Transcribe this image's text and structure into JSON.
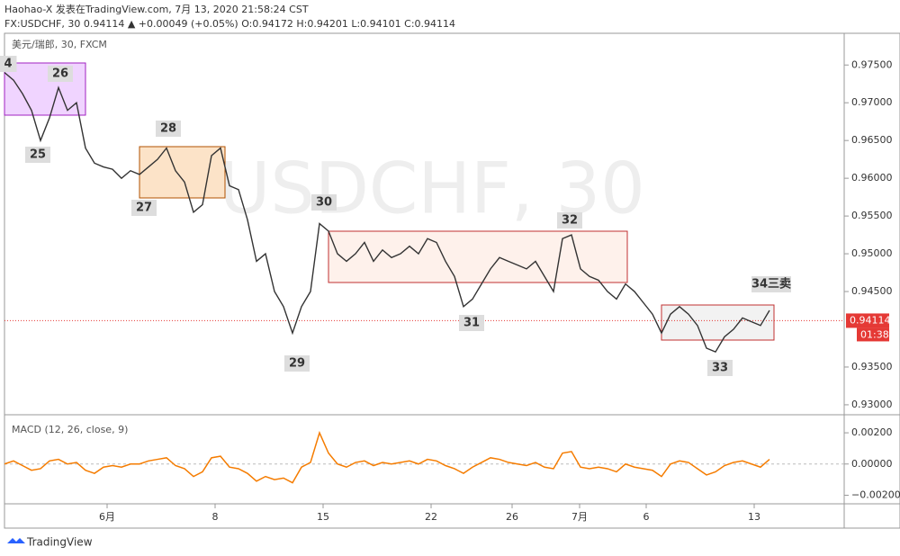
{
  "header": {
    "line1": "Haohao-X 发表在TradingView.com, 7月 13, 2020 21:58:24 CST",
    "line2": "FX:USDCHF, 30 0.94114 ▲ +0.00049 (+0.05%) O:0.94172 H:0.94201 L:0.94101 C:0.94114",
    "pane_title": "美元/瑞郎, 30, FXCM",
    "watermark": "USDCHF, 30",
    "countdown": "01:38",
    "logo": "TradingView"
  },
  "chart_data": [
    {
      "type": "line",
      "series": [
        {
          "name": "USDCHF",
          "color": "#333333",
          "values": [
            0.974,
            0.973,
            0.9712,
            0.969,
            0.965,
            0.968,
            0.972,
            0.969,
            0.97,
            0.964,
            0.962,
            0.9615,
            0.9612,
            0.96,
            0.961,
            0.9605,
            0.9615,
            0.9625,
            0.964,
            0.961,
            0.9595,
            0.9555,
            0.9565,
            0.963,
            0.964,
            0.959,
            0.9585,
            0.9545,
            0.949,
            0.95,
            0.945,
            0.943,
            0.9395,
            0.943,
            0.945,
            0.954,
            0.953,
            0.95,
            0.949,
            0.95,
            0.9515,
            0.949,
            0.9505,
            0.9495,
            0.95,
            0.951,
            0.95,
            0.952,
            0.9515,
            0.949,
            0.947,
            0.943,
            0.944,
            0.946,
            0.948,
            0.9495,
            0.949,
            0.9485,
            0.948,
            0.949,
            0.947,
            0.945,
            0.952,
            0.9525,
            0.948,
            0.947,
            0.9465,
            0.945,
            0.944,
            0.946,
            0.945,
            0.9435,
            0.942,
            0.9395,
            0.942,
            0.943,
            0.942,
            0.9405,
            0.9375,
            0.937,
            0.939,
            0.94,
            0.9415,
            0.941,
            0.9405,
            0.9425
          ]
        }
      ],
      "xlim": [
        0,
        93.3
      ],
      "xticks": [
        {
          "value": 11.4,
          "label": "6月"
        },
        {
          "value": 23.4,
          "label": "8"
        },
        {
          "value": 35.4,
          "label": "15"
        },
        {
          "value": 47.4,
          "label": "22"
        },
        {
          "value": 56.4,
          "label": "26"
        },
        {
          "value": 63.9,
          "label": "7月"
        },
        {
          "value": 71.3,
          "label": "6"
        },
        {
          "value": 83.3,
          "label": "13"
        }
      ],
      "ylim": [
        0.9288,
        0.9792
      ],
      "yticks": [
        {
          "value": 0.975,
          "label": "0.97500"
        },
        {
          "value": 0.97,
          "label": "0.97000"
        },
        {
          "value": 0.965,
          "label": "0.96500"
        },
        {
          "value": 0.96,
          "label": "0.96000"
        },
        {
          "value": 0.955,
          "label": "0.95500"
        },
        {
          "value": 0.95,
          "label": "0.95000"
        },
        {
          "value": 0.945,
          "label": "0.94500"
        },
        {
          "value": 0.935,
          "label": "0.93500"
        },
        {
          "value": 0.93,
          "label": "0.93000"
        }
      ],
      "last_price": {
        "value": 0.94114,
        "label": "0.94114"
      },
      "annotations": [
        "4",
        "25",
        "26",
        "28",
        "27",
        "30",
        "29",
        "31",
        "32",
        "33",
        "34三卖"
      ]
    },
    {
      "type": "line",
      "title": "MACD (12, 26, close, 9)",
      "series": [
        {
          "name": "MACD",
          "color": "#f57c00",
          "values": [
            0.0,
            0.0002,
            -0.0001,
            -0.0004,
            -0.0003,
            0.0002,
            0.0003,
            0.0,
            0.0001,
            -0.0004,
            -0.0006,
            -0.0002,
            -0.0001,
            -0.0002,
            0.0,
            0.0,
            0.0002,
            0.0003,
            0.0004,
            -0.0001,
            -0.0003,
            -0.0008,
            -0.0005,
            0.0004,
            0.0005,
            -0.0002,
            -0.0003,
            -0.0006,
            -0.0011,
            -0.0008,
            -0.001,
            -0.0009,
            -0.0012,
            -0.0002,
            0.0001,
            0.002,
            0.0007,
            0.0,
            -0.0002,
            0.0001,
            0.0002,
            -0.0001,
            0.0001,
            0.0,
            0.0001,
            0.0002,
            0.0,
            0.0003,
            0.0002,
            -0.0001,
            -0.0003,
            -0.0006,
            -0.0002,
            0.0001,
            0.0004,
            0.0003,
            0.0001,
            0.0,
            -0.0001,
            0.0001,
            -0.0002,
            -0.0003,
            0.0007,
            0.0008,
            -0.0002,
            -0.0003,
            -0.0002,
            -0.0003,
            -0.0005,
            0.0,
            -0.0002,
            -0.0003,
            -0.0004,
            -0.0008,
            0.0,
            0.0002,
            0.0001,
            -0.0003,
            -0.0007,
            -0.0005,
            -0.0001,
            0.0001,
            0.0002,
            0.0,
            -0.0002,
            0.0003
          ]
        }
      ],
      "ylim": [
        -0.00255,
        0.0031
      ],
      "yticks": [
        {
          "value": 0.002,
          "label": "0.00200"
        },
        {
          "value": 0,
          "label": "0.00000"
        },
        {
          "value": -0.002,
          "label": "−0.00200"
        }
      ]
    }
  ]
}
